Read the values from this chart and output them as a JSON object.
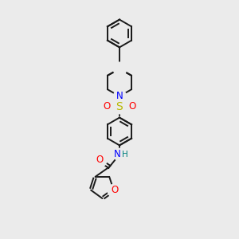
{
  "background_color": "#ebebeb",
  "bond_color": "#1a1a1a",
  "atom_colors": {
    "N": "#0000ff",
    "O": "#ff0000",
    "S": "#b8b800",
    "C": "#1a1a1a",
    "H": "#008080"
  },
  "figsize": [
    3.0,
    3.0
  ],
  "dpi": 100,
  "lw": 1.4,
  "fs": 8.5
}
